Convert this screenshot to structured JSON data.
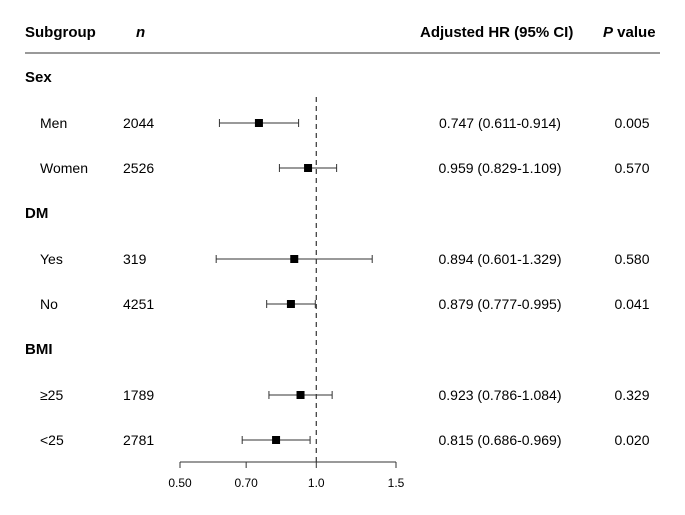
{
  "header": {
    "subgroup": "Subgroup",
    "n": "n",
    "hr": "Adjusted HR (95% CI)",
    "p_italic": "P",
    "p_rest": " value"
  },
  "chart_data": {
    "type": "forest",
    "xlabel": "",
    "x_scale": "log",
    "xlim": [
      0.5,
      1.5
    ],
    "x_ticks": [
      0.5,
      0.7,
      1.0,
      1.5
    ],
    "x_tick_labels": [
      "0.50",
      "0.70",
      "1.0",
      "1.5"
    ],
    "reference_line": 1.0,
    "groups": [
      {
        "name": "Sex",
        "rows": [
          {
            "label": "Men",
            "n": "2044",
            "hr": 0.747,
            "lo": 0.611,
            "hi": 0.914,
            "ci_text": "0.747 (0.611-0.914)",
            "p": "0.005"
          },
          {
            "label": "Women",
            "n": "2526",
            "hr": 0.959,
            "lo": 0.829,
            "hi": 1.109,
            "ci_text": "0.959 (0.829-1.109)",
            "p": "0.570"
          }
        ]
      },
      {
        "name": "DM",
        "rows": [
          {
            "label": "Yes",
            "n": "319",
            "hr": 0.894,
            "lo": 0.601,
            "hi": 1.329,
            "ci_text": "0.894 (0.601-1.329)",
            "p": "0.580"
          },
          {
            "label": "No",
            "n": "4251",
            "hr": 0.879,
            "lo": 0.777,
            "hi": 0.995,
            "ci_text": "0.879 (0.777-0.995)",
            "p": "0.041"
          }
        ]
      },
      {
        "name": "BMI",
        "rows": [
          {
            "label": "≥25",
            "n": "1789",
            "hr": 0.923,
            "lo": 0.786,
            "hi": 1.084,
            "ci_text": "0.923 (0.786-1.084)",
            "p": "0.329"
          },
          {
            "label": "<25",
            "n": "2781",
            "hr": 0.815,
            "lo": 0.686,
            "hi": 0.969,
            "ci_text": "0.815 (0.686-0.969)",
            "p": "0.020"
          }
        ]
      }
    ]
  }
}
